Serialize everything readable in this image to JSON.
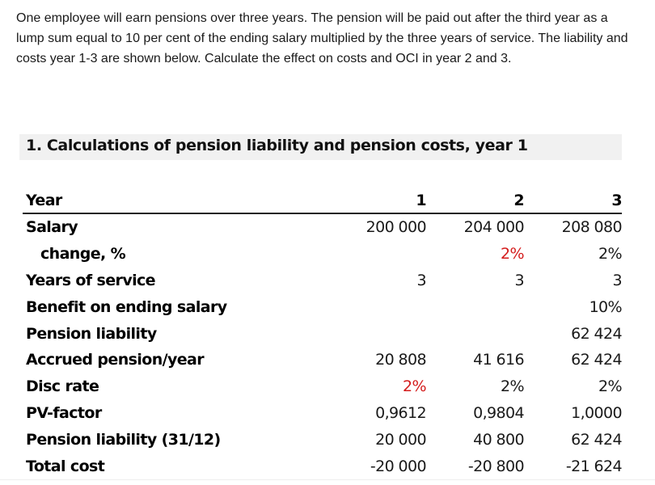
{
  "intro": {
    "text": "One employee will earn pensions over three years. The pension will be paid out after the third year as a lump sum equal to 10 per cent of the ending salary multiplied by the three years of service. The liability and costs year 1-3 are shown below. Calculate the effect on costs and OCI in year 2 and 3."
  },
  "section": {
    "title": "1. Calculations of pension liability and pension costs, year 1"
  },
  "colors": {
    "highlight_red": "#d41c1c",
    "band_gray": "#f1f1f1"
  },
  "table": {
    "header": {
      "label": "Year",
      "cols": [
        "1",
        "2",
        "3"
      ]
    },
    "rows": [
      {
        "label": "Salary",
        "values": [
          "200 000",
          "204 000",
          "208 080"
        ]
      },
      {
        "label": "change, %",
        "values": [
          "",
          "2%",
          "2%"
        ]
      },
      {
        "label": "Years of service",
        "values": [
          "3",
          "3",
          "3"
        ]
      },
      {
        "label": "Benefit on ending salary",
        "values": [
          "",
          "",
          "10%"
        ]
      },
      {
        "label": "Pension liability",
        "values": [
          "",
          "",
          "62 424"
        ]
      },
      {
        "label": "Accrued pension/year",
        "values": [
          "20 808",
          "41 616",
          "62 424"
        ]
      },
      {
        "label": "Disc rate",
        "values": [
          "2%",
          "2%",
          "2%"
        ]
      },
      {
        "label": "PV-factor",
        "values": [
          "0,9612",
          "0,9804",
          "1,0000"
        ]
      },
      {
        "label": "Pension liability (31/12)",
        "values": [
          "20 000",
          "40 800",
          "62 424"
        ]
      },
      {
        "label": "Total cost",
        "values": [
          "-20 000",
          "-20 800",
          "-21 624"
        ]
      }
    ]
  }
}
